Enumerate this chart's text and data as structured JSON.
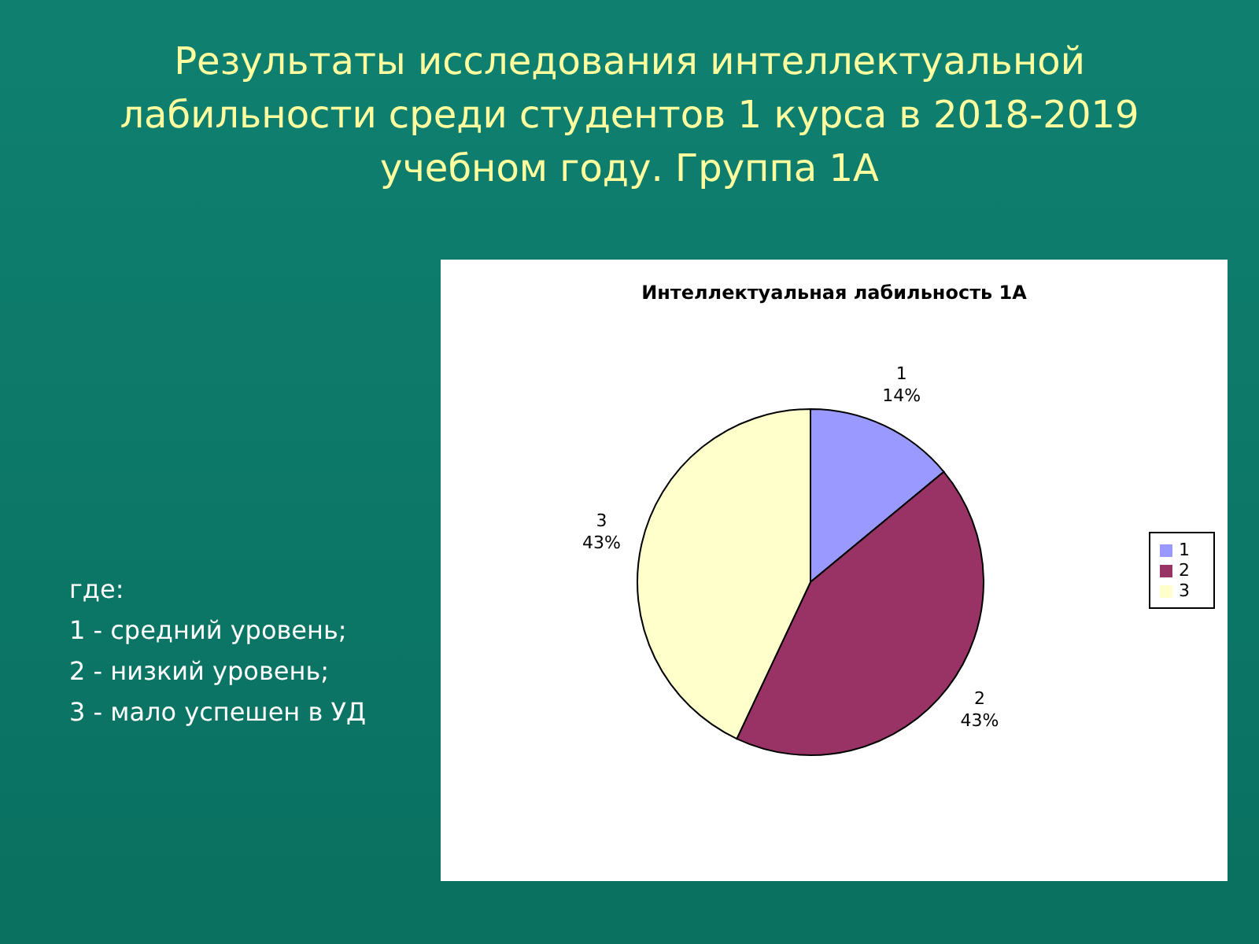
{
  "chart_data": {
    "type": "pie",
    "title": "Результаты исследования интеллектуальной лабильности среди студентов 1 курса в 2018-2019 учебном году. Группа 1А",
    "subtitle": "Интеллектуальная лабильность 1А",
    "categories": [
      "1",
      "2",
      "3"
    ],
    "values": [
      14,
      43,
      43
    ],
    "colors": [
      "#9999ff",
      "#993366",
      "#ffffcc"
    ],
    "value_labels": [
      "14%",
      "43%",
      "43%"
    ],
    "legend": "right",
    "annotations": [
      "где:",
      "1 - средний уровень;",
      "2 - низкий уровень;",
      "3 - мало успешен в УД"
    ]
  }
}
